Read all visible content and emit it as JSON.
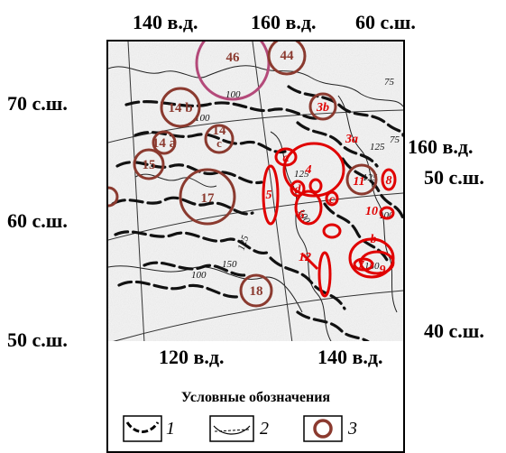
{
  "coords": {
    "top_140": "140 в.д.",
    "top_160": "160 в.д.",
    "top_60n": "60 с.ш.",
    "left_70n": "70 с.ш.",
    "left_60n": "60 с.ш.",
    "left_50n": "50 с.ш.",
    "right_160": "160 в.д.",
    "right_50n": "50 с.ш.",
    "right_40n": "40 с.ш.",
    "bottom_120": "120 в.д.",
    "bottom_140": "140 в.д."
  },
  "map": {
    "isoline_labels": [
      "100",
      "100",
      "75",
      "125",
      "125",
      "100",
      "150",
      "125",
      "150",
      "100",
      "100",
      "75",
      "125"
    ],
    "labels": {
      "c46": "46",
      "c44": "44",
      "c14b": "14 b",
      "c14a": "14 a",
      "c14c": "14",
      "c14c_sub": "c",
      "c15": "15",
      "c17": "17",
      "c18": "18",
      "r3b": "3b",
      "r3a": "3a",
      "r_a": "a",
      "r4": "4",
      "r5": "5",
      "r_d": "d",
      "r_c": "c",
      "r6": "6",
      "r11": "11",
      "r8": "8",
      "r10": "10",
      "r_b": "b",
      "r12": "12",
      "r7": "7",
      "r9": "9"
    }
  },
  "legend": {
    "title": "Условные обозначения",
    "items": [
      "1",
      "2",
      "3"
    ]
  },
  "colors": {
    "brown_circle": "#8b3a2f",
    "brown_text": "#8b3a2f",
    "red_mark": "#e00000",
    "pink_circle": "#b44a7a",
    "isoline": "#111111"
  }
}
